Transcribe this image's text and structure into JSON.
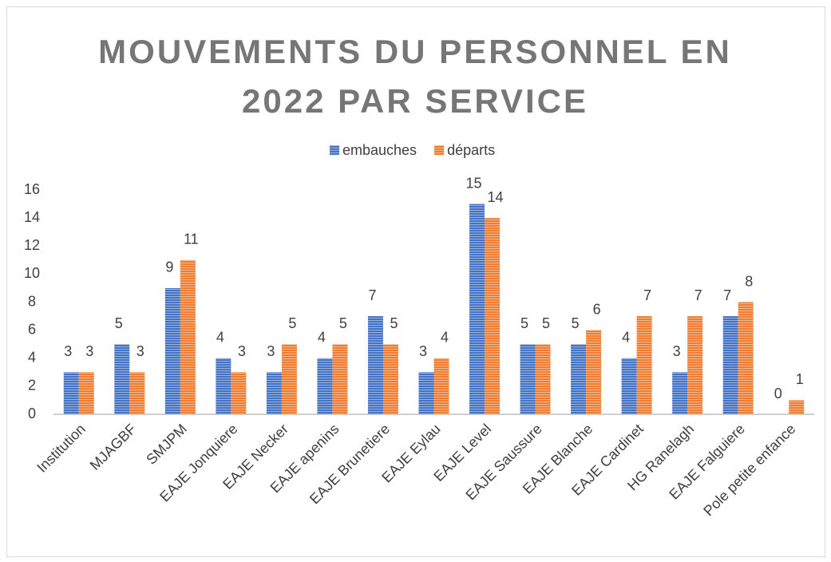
{
  "chart_data": {
    "type": "bar",
    "title": "MOUVEMENTS DU PERSONNEL EN 2022 PAR SERVICE",
    "categories": [
      "Institution",
      "MJAGBF",
      "SMJPM",
      "EAJE Jonquiere",
      "EAJE Necker",
      "EAJE apenins",
      "EAJE Brunetiere",
      "EAJE Eylau",
      "EAJE Level",
      "EAJE Saussure",
      "EAJE Blanche",
      "EAJE Cardinet",
      "HG Ranelagh",
      "EAJE Falguiere",
      "Pole petite enfance"
    ],
    "series": [
      {
        "name": "embauches",
        "color": "#4472c4",
        "values": [
          3,
          5,
          9,
          4,
          3,
          4,
          7,
          3,
          15,
          5,
          5,
          4,
          3,
          7,
          0
        ]
      },
      {
        "name": "départs",
        "color": "#ed7d31",
        "values": [
          3,
          3,
          11,
          3,
          5,
          5,
          5,
          4,
          14,
          5,
          6,
          7,
          7,
          8,
          1
        ]
      }
    ],
    "ylim": [
      0,
      16
    ],
    "yticks": [
      0,
      2,
      4,
      6,
      8,
      10,
      12,
      14,
      16
    ],
    "grid": false,
    "legend": "top"
  }
}
